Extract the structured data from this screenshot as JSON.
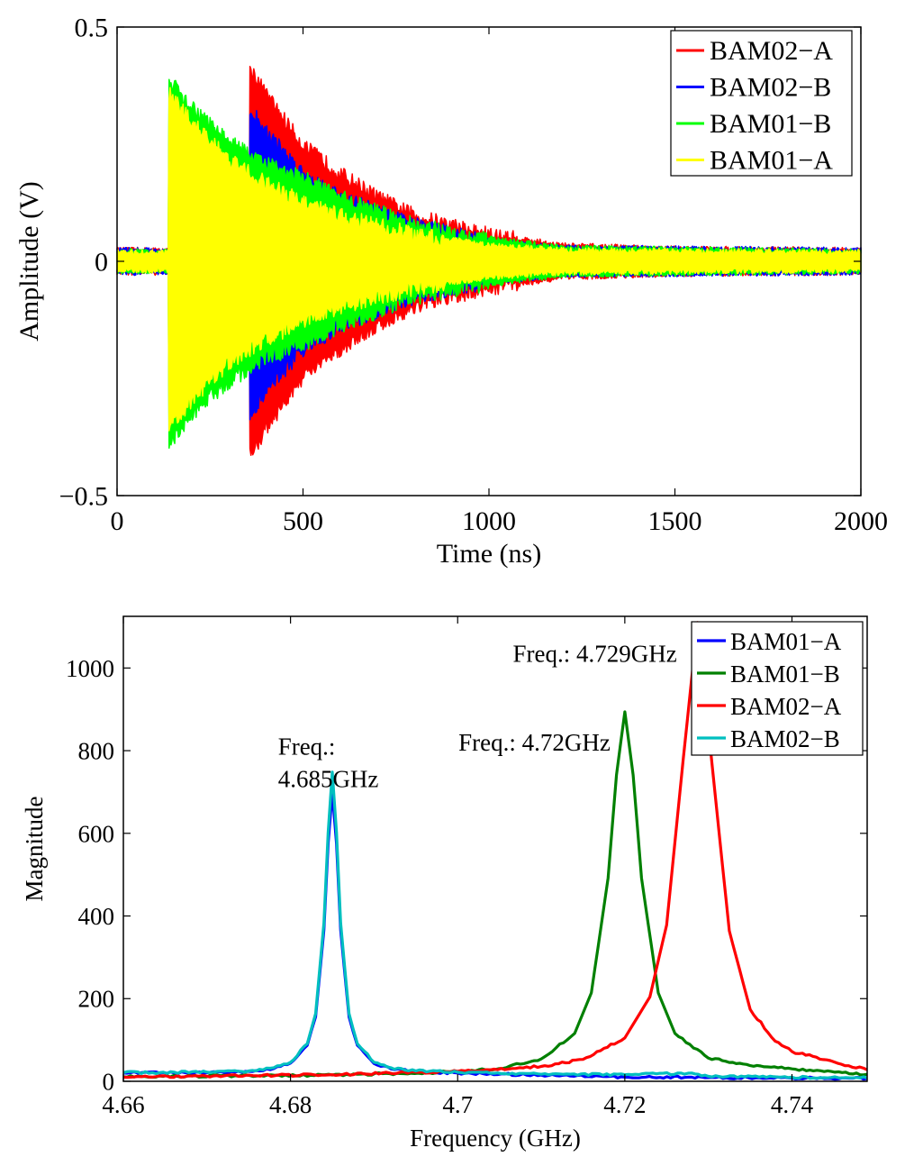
{
  "chart_data": [
    {
      "type": "area",
      "title": "",
      "xlabel": "Time (ns)",
      "ylabel": "Amplitude (V)",
      "xlim": [
        0,
        2000
      ],
      "ylim": [
        -0.5,
        0.5
      ],
      "xticks": [
        0,
        500,
        1000,
        1500,
        2000
      ],
      "xtick_labels": [
        "0",
        "500",
        "1000",
        "1500",
        "2000"
      ],
      "yticks": [
        -0.5,
        0,
        0.5
      ],
      "ytick_labels": [
        "−0.5",
        "0",
        "0.5"
      ],
      "grid": false,
      "legend_position": "top-right",
      "legend": [
        "BAM02−A",
        "BAM02−B",
        "BAM01−B",
        "BAM01−A"
      ],
      "series": [
        {
          "name": "BAM02−A",
          "color": "#ff0000",
          "envelope_t_ns": [
            0,
            355,
            356,
            400,
            500,
            600,
            700,
            800,
            1000,
            1200,
            1500,
            2000
          ],
          "envelope_amp_v": [
            0.025,
            0.025,
            0.42,
            0.36,
            0.25,
            0.19,
            0.14,
            0.1,
            0.06,
            0.035,
            0.028,
            0.025
          ]
        },
        {
          "name": "BAM02−B",
          "color": "#0000ff",
          "envelope_t_ns": [
            0,
            355,
            356,
            400,
            500,
            600,
            700,
            800,
            1000,
            1200,
            2000
          ],
          "envelope_amp_v": [
            0.025,
            0.025,
            0.33,
            0.28,
            0.19,
            0.14,
            0.11,
            0.08,
            0.045,
            0.03,
            0.025
          ]
        },
        {
          "name": "BAM01−B",
          "color": "#00ff00",
          "envelope_t_ns": [
            0,
            139,
            140,
            200,
            300,
            400,
            500,
            600,
            800,
            1000,
            1200,
            2000
          ],
          "envelope_amp_v": [
            0.022,
            0.022,
            0.39,
            0.33,
            0.26,
            0.21,
            0.18,
            0.14,
            0.08,
            0.05,
            0.03,
            0.022
          ]
        },
        {
          "name": "BAM01−A",
          "color": "#ffff00",
          "envelope_t_ns": [
            0,
            139,
            140,
            200,
            300,
            400,
            500,
            600,
            800,
            1000,
            1200,
            2000
          ],
          "envelope_amp_v": [
            0.02,
            0.02,
            0.36,
            0.3,
            0.22,
            0.17,
            0.13,
            0.1,
            0.06,
            0.035,
            0.025,
            0.02
          ]
        }
      ]
    },
    {
      "type": "line",
      "title": "",
      "xlabel": "Frequency (GHz)",
      "ylabel": "Magnitude",
      "xlim": [
        4.66,
        4.749
      ],
      "ylim": [
        0,
        1125
      ],
      "xticks": [
        4.66,
        4.68,
        4.7,
        4.72,
        4.74
      ],
      "xtick_labels": [
        "4.66",
        "4.68",
        "4.7",
        "4.72",
        "4.74"
      ],
      "yticks": [
        0,
        200,
        400,
        600,
        800,
        1000
      ],
      "ytick_labels": [
        "0",
        "200",
        "400",
        "600",
        "800",
        "1000"
      ],
      "grid": false,
      "legend_position": "top-right",
      "legend": [
        "BAM01−A",
        "BAM01−B",
        "BAM02−A",
        "BAM02−B"
      ],
      "annotations": [
        {
          "lines": [
            "Freq.:",
            "4.685GHz"
          ],
          "x": 4.6785,
          "y": 790
        },
        {
          "lines": [
            "Freq.: 4.72GHz"
          ],
          "x": 4.7001,
          "y": 800
        },
        {
          "lines": [
            "Freq.: 4.729GHz"
          ],
          "x": 4.7066,
          "y": 1015
        }
      ],
      "series": [
        {
          "name": "BAM01−A",
          "color": "#0000ff",
          "x": [
            4.66,
            4.67,
            4.675,
            4.678,
            4.68,
            4.682,
            4.683,
            4.684,
            4.6845,
            4.685,
            4.6855,
            4.686,
            4.687,
            4.688,
            4.69,
            4.692,
            4.695,
            4.7,
            4.71,
            4.72,
            4.728,
            4.73,
            4.74,
            4.749
          ],
          "y": [
            20,
            21,
            24,
            31,
            44,
            87,
            156,
            366,
            575,
            700,
            575,
            366,
            156,
            87,
            43,
            30,
            23,
            20,
            15,
            10,
            10,
            9,
            8,
            7
          ]
        },
        {
          "name": "BAM01−B",
          "color": "#008000",
          "x": [
            4.66,
            4.685,
            4.7,
            4.705,
            4.71,
            4.714,
            4.716,
            4.718,
            4.719,
            4.72,
            4.721,
            4.722,
            4.724,
            4.726,
            4.73,
            4.735,
            4.74,
            4.749
          ],
          "y": [
            11,
            15,
            23,
            31,
            54,
            116,
            214,
            492,
            741,
            894,
            741,
            492,
            214,
            116,
            56,
            38,
            30,
            17
          ]
        },
        {
          "name": "BAM02−A",
          "color": "#ff0000",
          "x": [
            4.66,
            4.685,
            4.7,
            4.71,
            4.715,
            4.72,
            4.723,
            4.725,
            4.727,
            4.7287,
            4.7305,
            4.7325,
            4.735,
            4.738,
            4.74,
            4.745,
            4.749
          ],
          "y": [
            10,
            16,
            24,
            36,
            53,
            105,
            204,
            378,
            781,
            1110,
            755,
            364,
            174,
            97,
            72,
            47,
            28
          ]
        },
        {
          "name": "BAM02−B",
          "color": "#00bfbf",
          "x": [
            4.66,
            4.67,
            4.675,
            4.678,
            4.68,
            4.682,
            4.683,
            4.684,
            4.6845,
            4.685,
            4.6855,
            4.686,
            4.687,
            4.688,
            4.69,
            4.692,
            4.695,
            4.7,
            4.71,
            4.72,
            4.728,
            4.73,
            4.74,
            4.749
          ],
          "y": [
            21,
            22,
            25,
            33,
            46,
            91,
            164,
            383,
            602,
            748,
            602,
            383,
            164,
            91,
            46,
            33,
            25,
            22,
            17,
            16,
            20,
            12,
            10,
            8
          ]
        }
      ]
    }
  ]
}
